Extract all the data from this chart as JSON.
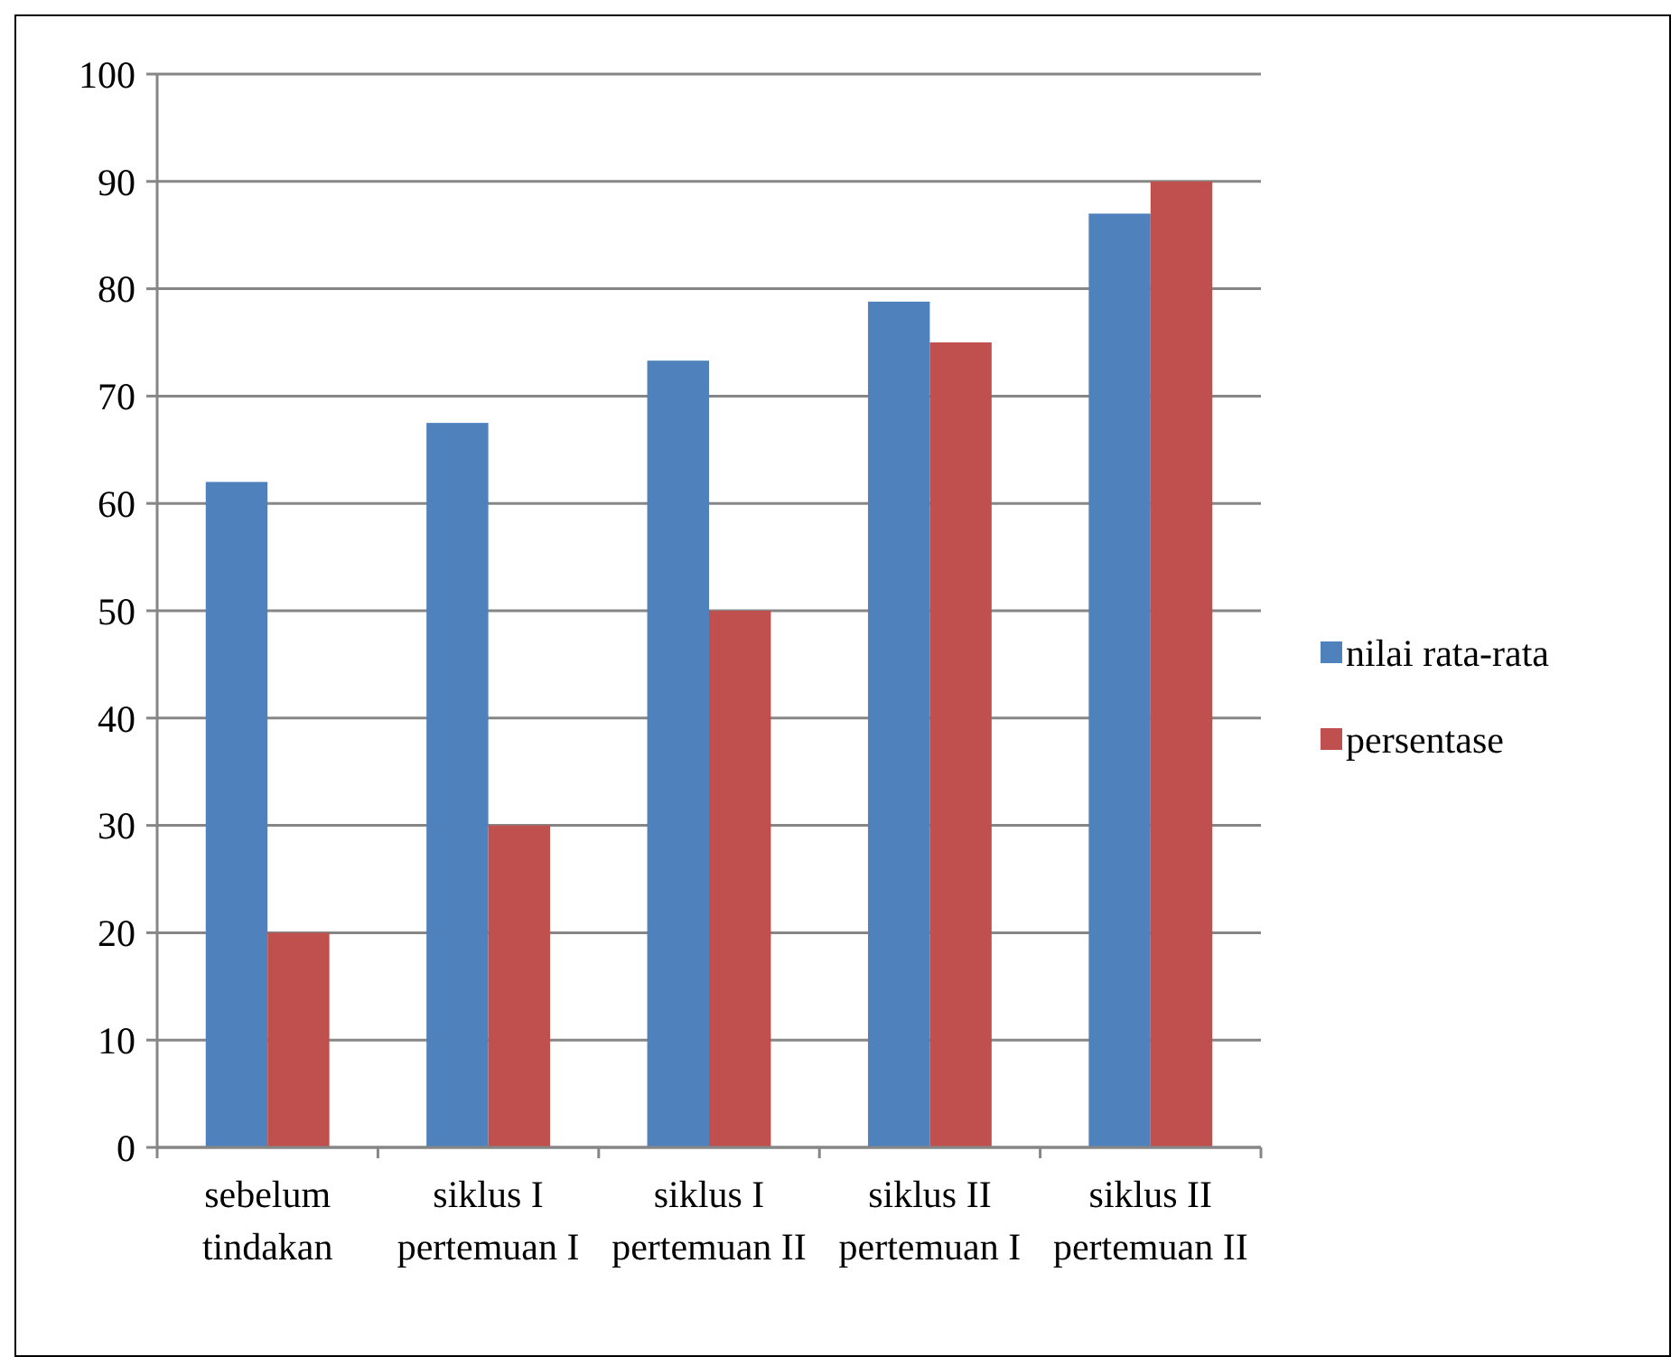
{
  "chart_data": {
    "type": "bar",
    "categories": [
      "sebelum tindakan",
      "siklus I pertemuan I",
      "siklus I pertemuan II",
      "siklus II pertemuan I",
      "siklus II pertemuan II"
    ],
    "series": [
      {
        "name": "nilai rata-rata",
        "color": "#4f81bd",
        "values": [
          62,
          67.5,
          73.3,
          78.8,
          87
        ]
      },
      {
        "name": "persentase",
        "color": "#c0504d",
        "values": [
          20,
          30,
          50,
          75,
          90
        ]
      }
    ],
    "ylim": [
      0,
      100
    ],
    "yticks": [
      0,
      10,
      20,
      30,
      40,
      50,
      60,
      70,
      80,
      90,
      100
    ],
    "grid": "y",
    "legend": "right"
  }
}
